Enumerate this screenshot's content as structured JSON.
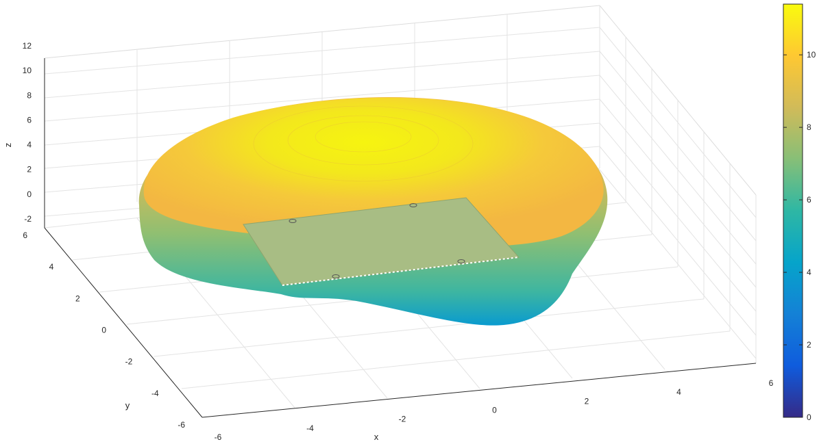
{
  "chart_data": {
    "type": "surface3d",
    "title": "",
    "xlabel": "x",
    "ylabel": "y",
    "zlabel": "z",
    "xlim": [
      -6,
      6
    ],
    "ylim": [
      -6,
      6
    ],
    "zlim": [
      -2,
      12
    ],
    "x_ticks": [
      -6,
      -4,
      -2,
      0,
      2,
      4,
      6
    ],
    "y_ticks": [
      -6,
      -4,
      -2,
      0,
      2,
      4,
      6
    ],
    "z_ticks": [
      -2,
      0,
      2,
      4,
      6,
      8,
      10,
      12
    ],
    "grid": true,
    "colormap": "parula",
    "colorbar": {
      "range": [
        0,
        11.4
      ],
      "ticks": [
        0,
        2,
        4,
        6,
        8,
        10
      ],
      "colors": [
        "#352a87",
        "#0f5cdd",
        "#1481d6",
        "#06a4ca",
        "#2eb7a4",
        "#87bf77",
        "#d1bb59",
        "#fec832",
        "#f9fb0e"
      ]
    },
    "surface": {
      "shape": "closed blob (bean-shaped) with flat top",
      "z_min": 3.5,
      "z_max": 11.2
    },
    "plane": {
      "color": "#a8bd84",
      "corners": [
        [
          -2.5,
          -2.5,
          6
        ],
        [
          3.0,
          -2.5,
          6
        ],
        [
          3.0,
          2.5,
          6
        ],
        [
          -2.5,
          2.5,
          6
        ]
      ],
      "marker_points": [
        [
          -2.3,
          1.5,
          6
        ],
        [
          1.3,
          2.3,
          6
        ],
        [
          -2.0,
          -2.4,
          6
        ],
        [
          2.2,
          -1.0,
          6
        ]
      ]
    }
  }
}
